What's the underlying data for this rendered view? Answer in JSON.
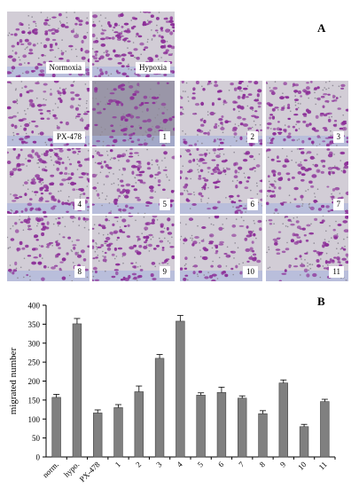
{
  "panel_a_label": "A",
  "panel_b_label": "B",
  "micrographs": [
    {
      "label": "Normoxia",
      "density": 0.55
    },
    {
      "label": "Hypoxia",
      "density": 1.0
    },
    {
      "label": "PX-478",
      "density": 0.45
    },
    {
      "label": "1",
      "density": 0.5
    },
    {
      "label": "2",
      "density": 0.6
    },
    {
      "label": "3",
      "density": 0.8
    },
    {
      "label": "4",
      "density": 0.95
    },
    {
      "label": "5",
      "density": 0.55
    },
    {
      "label": "6",
      "density": 0.6
    },
    {
      "label": "7",
      "density": 0.55
    },
    {
      "label": "8",
      "density": 0.45
    },
    {
      "label": "9",
      "density": 0.65
    },
    {
      "label": "10",
      "density": 0.35
    },
    {
      "label": "11",
      "density": 0.5
    }
  ],
  "colors": {
    "stain": "#8c2f98",
    "bar": "#808080",
    "bg_gray": "#c9c3cf"
  },
  "chart_data": {
    "type": "bar",
    "categories": [
      "norm.",
      "hypo.",
      "PX-478",
      "1",
      "2",
      "3",
      "4",
      "5",
      "6",
      "7",
      "8",
      "9",
      "10",
      "11"
    ],
    "values": [
      157,
      351,
      116,
      130,
      172,
      260,
      358,
      163,
      170,
      155,
      114,
      195,
      80,
      146
    ],
    "errors": [
      8,
      14,
      8,
      8,
      15,
      10,
      15,
      6,
      14,
      6,
      8,
      8,
      6,
      6
    ],
    "title": "",
    "xlabel": "",
    "ylabel": "migrated number",
    "ylim": [
      0,
      400
    ],
    "yticks": [
      "0",
      "50",
      "100",
      "150",
      "200",
      "250",
      "300",
      "350",
      "400"
    ],
    "grid": false
  }
}
